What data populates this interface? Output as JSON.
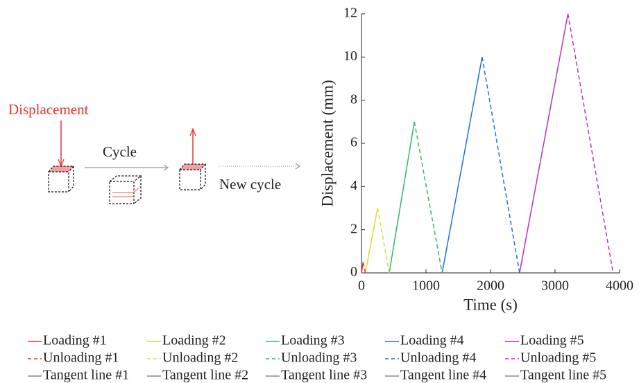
{
  "diagram": {
    "labels": [
      "Displacement",
      "Cycle",
      "New cycle"
    ]
  },
  "chart_data": {
    "type": "line",
    "xlabel": "Time (s)",
    "ylabel": "Displacement (mm)",
    "xlim": [
      0,
      4000
    ],
    "xticks": [
      0,
      1000,
      2000,
      3000,
      4000
    ],
    "ylim": [
      0,
      12
    ],
    "yticks": [
      0,
      2,
      4,
      6,
      8,
      10,
      12
    ],
    "series": [
      {
        "name": "Loading #1",
        "color": "#e8332f",
        "dash": "solid",
        "x": [
          0,
          25
        ],
        "values": [
          0,
          0.5
        ]
      },
      {
        "name": "Loading #2",
        "color": "#d4e02e",
        "dash": "solid",
        "x": [
          60,
          250
        ],
        "values": [
          0,
          3
        ]
      },
      {
        "name": "Loading #3",
        "color": "#2eb86a",
        "dash": "solid",
        "x": [
          430,
          820
        ],
        "values": [
          0,
          7
        ]
      },
      {
        "name": "Loading #4",
        "color": "#1f6fd1",
        "dash": "solid",
        "x": [
          1250,
          1870
        ],
        "values": [
          0,
          10
        ]
      },
      {
        "name": "Loading #5",
        "color": "#b92ec8",
        "dash": "solid",
        "x": [
          2450,
          3200
        ],
        "values": [
          0,
          12
        ]
      },
      {
        "name": "Unloading #1",
        "color": "#e8332f",
        "dash": "dashed",
        "x": [
          25,
          60
        ],
        "values": [
          0.5,
          0
        ]
      },
      {
        "name": "Unloading #2",
        "color": "#d4e02e",
        "dash": "dashed",
        "x": [
          250,
          430
        ],
        "values": [
          3,
          0
        ]
      },
      {
        "name": "Unloading #3",
        "color": "#2eb86a",
        "dash": "dashed",
        "x": [
          820,
          1250
        ],
        "values": [
          7,
          0
        ]
      },
      {
        "name": "Unloading #4",
        "color": "#1f6fd1",
        "dash": "dashed",
        "x": [
          1870,
          2450
        ],
        "values": [
          10,
          0
        ]
      },
      {
        "name": "Unloading #5",
        "color": "#b92ec8",
        "dash": "dashed",
        "x": [
          3200,
          3900
        ],
        "values": [
          12,
          0
        ]
      },
      {
        "name": "Tangent line #1",
        "color": "#888888",
        "dash": "solid",
        "x": [],
        "values": []
      },
      {
        "name": "Tangent line #2",
        "color": "#888888",
        "dash": "solid",
        "x": [],
        "values": []
      },
      {
        "name": "Tangent line #3",
        "color": "#888888",
        "dash": "solid",
        "x": [],
        "values": []
      },
      {
        "name": "Tangent line #4",
        "color": "#888888",
        "dash": "solid",
        "x": [],
        "values": []
      },
      {
        "name": "Tangent line #5",
        "color": "#888888",
        "dash": "solid",
        "x": [],
        "values": []
      }
    ]
  }
}
